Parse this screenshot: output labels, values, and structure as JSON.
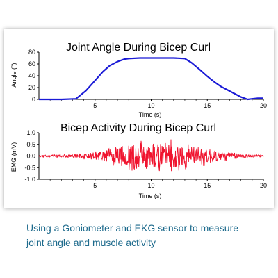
{
  "caption": {
    "line1": "Using a Goniometer and EKG sensor to measure",
    "line2": "joint angle and muscle activity"
  },
  "colors": {
    "angle_line": "#1a1ad6",
    "emg_line": "#f0142f",
    "angle_label": "#1a1ad6",
    "emg_label": "#e0202e"
  },
  "chart_data": [
    {
      "type": "line",
      "title": "Joint Angle During Bicep Curl",
      "xlabel": "Time (s)",
      "ylabel": "Angle (°)",
      "xlim": [
        0,
        20
      ],
      "ylim": [
        0,
        80
      ],
      "xticks": [
        5,
        10,
        15,
        20
      ],
      "yticks": [
        0,
        20,
        40,
        60,
        80
      ],
      "x": [
        0,
        2,
        3.3,
        4.2,
        5.0,
        5.7,
        6.3,
        7.0,
        7.6,
        8.0,
        9.0,
        10.0,
        11.0,
        12.0,
        13.0,
        13.6,
        14.3,
        15.0,
        15.6,
        16.2,
        16.8,
        17.4,
        18.0,
        18.6,
        19.0,
        19.5,
        20.0
      ],
      "series": [
        {
          "values": [
            0,
            0,
            1,
            15,
            32,
            47,
            57,
            64,
            68,
            69,
            70,
            70,
            70,
            70,
            69,
            62,
            51,
            39,
            30,
            22,
            16,
            10,
            4,
            0,
            1,
            2,
            2
          ]
        }
      ]
    },
    {
      "type": "line",
      "title": "Bicep Activity During Bicep Curl",
      "xlabel": "Time (s)",
      "ylabel": "EMG  (mV)",
      "xlim": [
        0,
        20
      ],
      "ylim": [
        -1.0,
        1.0
      ],
      "xticks": [
        5,
        10,
        15,
        20
      ],
      "yticks": [
        1.0,
        0.5,
        0.0,
        -0.5,
        -1.0
      ],
      "envelope": {
        "x": [
          0,
          1,
          2,
          3,
          4,
          5,
          6,
          7,
          8,
          9,
          10,
          11,
          12,
          13,
          14,
          15,
          16,
          17,
          18,
          19,
          20
        ],
        "amplitude": [
          0.04,
          0.05,
          0.07,
          0.1,
          0.16,
          0.25,
          0.36,
          0.5,
          0.72,
          0.78,
          0.82,
          0.8,
          0.75,
          0.68,
          0.58,
          0.45,
          0.3,
          0.2,
          0.12,
          0.07,
          0.05
        ]
      },
      "series": [
        {
          "sample_count": 600
        }
      ]
    }
  ]
}
